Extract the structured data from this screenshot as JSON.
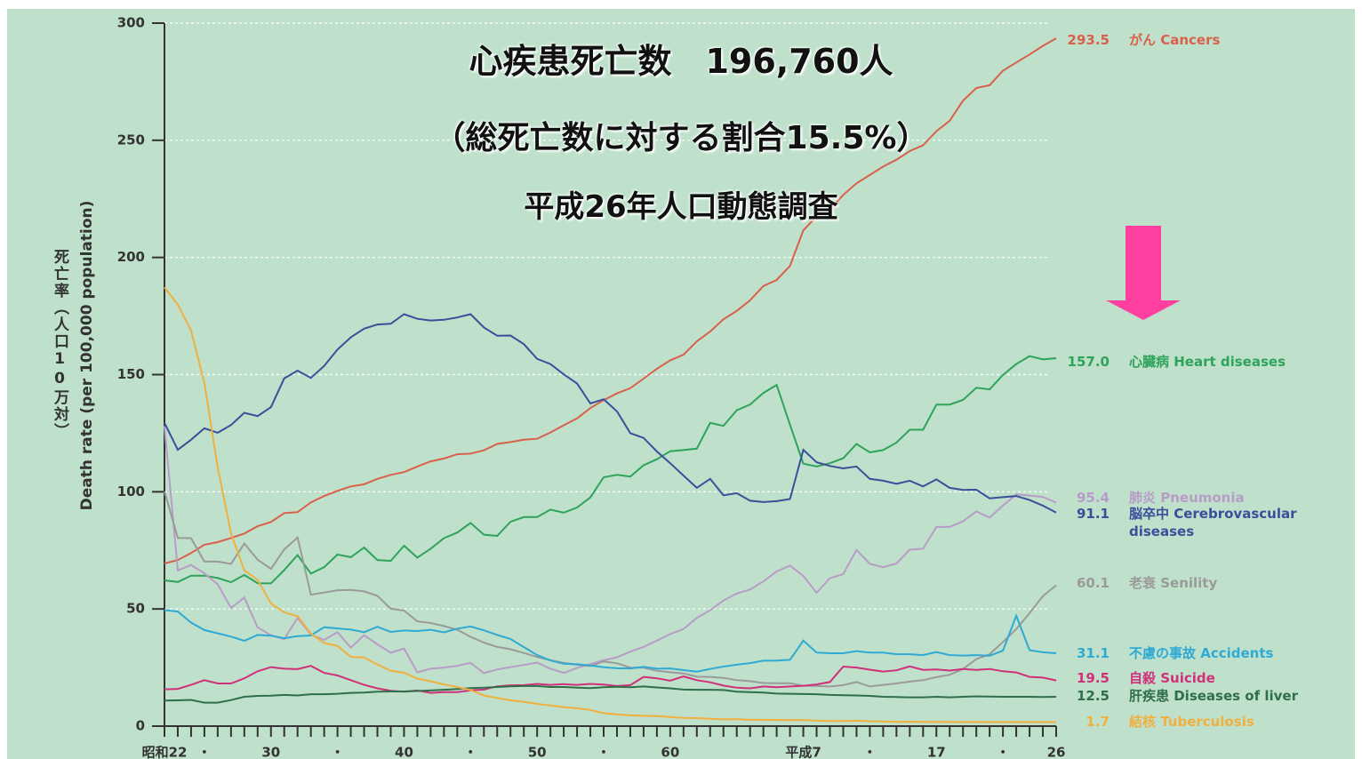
{
  "chart_data": {
    "type": "line",
    "title": "心疾患死亡数　196,760人",
    "subtitle": "（総死亡数に対する割合15.5%）",
    "source": "平成26年人口動態調査",
    "ylabel": "死亡率（人口10万対）",
    "ylabel_en": "Death rate (per 100,000 population)",
    "categories": [
      "昭和22",
      null,
      null,
      "・",
      null,
      null,
      null,
      null,
      "30",
      null,
      null,
      null,
      null,
      "・",
      null,
      null,
      null,
      null,
      "40",
      null,
      null,
      null,
      null,
      "・",
      null,
      null,
      null,
      null,
      "50",
      null,
      null,
      null,
      null,
      "・",
      null,
      null,
      null,
      null,
      "60",
      null,
      null,
      null,
      null,
      null,
      null,
      null,
      null,
      null,
      "平成7",
      null,
      null,
      null,
      null,
      "・",
      null,
      null,
      null,
      null,
      "17",
      null,
      null,
      null,
      null,
      "・",
      null,
      null,
      null,
      "26"
    ],
    "ylim": [
      0,
      300
    ],
    "yticks": [
      0,
      50,
      100,
      150,
      200,
      250,
      300
    ],
    "grid": true,
    "series": [
      {
        "name": "がん Cancers",
        "color": "#d9604a",
        "values": [
          69.4,
          70.9,
          73.9,
          77.4,
          78.5,
          80.3,
          82.2,
          85.3,
          87.1,
          90.9,
          91.3,
          95.5,
          98.2,
          100.4,
          102.3,
          103.2,
          105.5,
          107.2,
          108.4,
          110.8,
          113.0,
          114.2,
          116.0,
          116.3,
          117.7,
          120.4,
          121.2,
          122.2,
          122.6,
          125.3,
          128.4,
          131.3,
          135.7,
          139.1,
          142.0,
          144.2,
          148.3,
          152.5,
          156.1,
          158.5,
          164.2,
          168.4,
          173.6,
          177.2,
          181.7,
          187.8,
          190.4,
          196.4,
          211.6,
          217.5,
          220.4,
          226.7,
          231.6,
          235.2,
          238.8,
          241.7,
          245.4,
          247.9,
          253.9,
          258.3,
          266.9,
          272.3,
          273.5,
          279.7,
          283.2,
          286.6,
          290.3,
          293.5
        ]
      },
      {
        "name": "心臓病 Heart diseases",
        "color": "#2ea35a",
        "values": [
          62.2,
          61.5,
          64.2,
          64.2,
          63.2,
          61.4,
          64.5,
          61.0,
          60.9,
          66.6,
          73.0,
          65.1,
          67.8,
          73.2,
          72.1,
          76.2,
          70.9,
          70.5,
          77.0,
          71.9,
          75.7,
          80.2,
          82.6,
          86.7,
          81.7,
          81.2,
          87.2,
          89.2,
          89.2,
          92.4,
          91.1,
          93.3,
          97.6,
          106.2,
          107.2,
          106.5,
          111.3,
          113.9,
          117.3,
          117.8,
          118.4,
          129.4,
          128.1,
          134.8,
          137.2,
          142.2,
          145.6,
          128.6,
          112.0,
          110.8,
          112.2,
          114.3,
          120.4,
          116.8,
          117.8,
          121.0,
          126.5,
          126.5,
          137.2,
          137.2,
          139.2,
          144.4,
          143.7,
          149.8,
          154.5,
          157.9,
          156.5,
          157.0
        ],
        "value_labels": [
          null,
          null,
          null,
          null,
          null,
          null,
          null,
          null,
          null,
          null,
          null,
          null,
          null,
          null,
          null,
          null,
          null,
          null,
          null,
          null,
          null,
          null,
          null,
          null,
          null,
          null,
          null,
          null,
          null,
          null,
          null,
          null,
          null,
          null,
          null,
          null,
          null,
          null,
          null,
          null,
          null,
          null,
          null,
          null,
          null,
          null,
          null,
          null,
          null,
          null,
          null,
          null,
          null,
          null,
          null,
          null,
          null,
          null,
          null,
          null,
          null,
          null,
          null,
          null,
          null,
          null,
          null,
          "157.0"
        ]
      },
      {
        "name": "肺炎 Pneumonia",
        "color": "#b89cc8",
        "values": [
          128.0,
          66.4,
          68.8,
          65.2,
          60.5,
          50.4,
          54.9,
          42.1,
          38.8,
          37.1,
          46.2,
          39.0,
          36.8,
          40.1,
          33.5,
          38.8,
          34.9,
          31.3,
          33.1,
          22.9,
          24.5,
          25.0,
          25.7,
          27.0,
          22.6,
          24.2,
          25.2,
          26.1,
          27.1,
          24.5,
          22.7,
          24.8,
          26.5,
          28.1,
          29.4,
          31.8,
          33.8,
          36.5,
          39.3,
          41.4,
          46.2,
          49.4,
          53.6,
          56.6,
          58.3,
          61.8,
          66.0,
          68.5,
          64.1,
          56.9,
          63.1,
          64.9,
          75.2,
          69.2,
          67.8,
          69.4,
          75.3,
          75.7,
          85.0,
          85.0,
          87.4,
          91.6,
          89.0,
          94.1,
          98.9,
          98.4,
          97.8,
          95.4
        ]
      },
      {
        "name": "脳卒中 Cerebrovascular diseases",
        "color": "#3a4f9a",
        "values": [
          129.4,
          117.9,
          122.2,
          127.1,
          125.2,
          128.5,
          133.7,
          132.3,
          136.1,
          148.4,
          151.7,
          148.6,
          153.7,
          160.7,
          165.9,
          169.6,
          171.4,
          171.7,
          175.8,
          173.8,
          173.1,
          173.4,
          174.4,
          175.8,
          170.1,
          166.6,
          166.7,
          163.0,
          156.7,
          154.5,
          150.1,
          146.2,
          137.7,
          139.5,
          134.3,
          125.0,
          123.0,
          117.2,
          112.2,
          106.9,
          101.7,
          105.5,
          98.5,
          99.4,
          96.2,
          95.6,
          96.0,
          96.9,
          117.9,
          112.6,
          111.0,
          110.0,
          110.8,
          105.5,
          104.7,
          103.4,
          104.7,
          102.3,
          105.3,
          101.7,
          100.8,
          100.9,
          97.2,
          97.7,
          98.2,
          96.5,
          94.1,
          91.1
        ]
      },
      {
        "name": "老衰 Senility",
        "color": "#9a9a9a",
        "values": [
          100.2,
          80.3,
          80.2,
          70.2,
          70.2,
          69.2,
          77.9,
          71.0,
          67.1,
          75.4,
          80.5,
          56.1,
          57.0,
          58.0,
          58.1,
          57.5,
          55.6,
          50.1,
          49.3,
          44.7,
          44.0,
          42.7,
          41.1,
          38.1,
          35.6,
          33.8,
          32.8,
          31.2,
          29.5,
          28.1,
          27.0,
          26.2,
          25.6,
          27.6,
          26.8,
          25.0,
          24.9,
          23.6,
          23.0,
          22.5,
          21.1,
          21.0,
          20.6,
          19.6,
          19.2,
          18.4,
          18.3,
          18.3,
          17.2,
          17.1,
          16.9,
          17.5,
          18.8,
          16.9,
          17.6,
          18.2,
          19.0,
          19.6,
          20.9,
          21.9,
          24.4,
          28.6,
          30.7,
          35.9,
          41.4,
          48.2,
          55.5,
          60.1
        ]
      },
      {
        "name": "不慮の事故 Accidents",
        "color": "#2eaad4",
        "values": [
          49.5,
          48.9,
          44.2,
          41.0,
          39.6,
          38.2,
          36.4,
          38.9,
          38.6,
          37.5,
          38.4,
          38.7,
          42.2,
          41.7,
          41.2,
          40.1,
          42.4,
          40.2,
          40.8,
          40.6,
          41.1,
          40.0,
          41.6,
          42.5,
          40.9,
          38.9,
          37.2,
          33.7,
          30.3,
          28.0,
          26.6,
          26.4,
          25.9,
          25.1,
          24.7,
          24.6,
          25.3,
          24.5,
          24.6,
          23.9,
          23.2,
          24.4,
          25.4,
          26.2,
          26.9,
          27.9,
          28.0,
          28.3,
          36.5,
          31.4,
          31.1,
          31.1,
          32.0,
          31.4,
          31.4,
          30.7,
          30.7,
          30.3,
          31.6,
          30.3,
          30.1,
          30.3,
          30.0,
          32.2,
          47.1,
          32.4,
          31.5,
          31.1
        ]
      },
      {
        "name": "自殺 Suicide",
        "color": "#d0307a",
        "values": [
          15.7,
          15.9,
          17.6,
          19.6,
          18.2,
          18.2,
          20.4,
          23.4,
          25.2,
          24.5,
          24.3,
          25.7,
          22.7,
          21.6,
          19.6,
          17.6,
          16.1,
          15.1,
          14.7,
          15.2,
          14.2,
          14.5,
          14.5,
          15.3,
          15.6,
          17.0,
          17.4,
          17.5,
          18.0,
          17.6,
          17.9,
          17.6,
          18.0,
          17.7,
          17.1,
          17.5,
          21.0,
          20.4,
          19.4,
          21.2,
          19.6,
          18.7,
          17.3,
          16.4,
          16.1,
          16.9,
          16.6,
          16.9,
          17.2,
          17.8,
          18.8,
          25.4,
          25.0,
          24.1,
          23.3,
          23.8,
          25.5,
          24.0,
          24.2,
          23.7,
          24.4,
          24.0,
          24.4,
          23.4,
          22.9,
          21.0,
          20.7,
          19.5
        ]
      },
      {
        "name": "肝疾患 Diseases of liver",
        "color": "#2f6f4a",
        "values": [
          10.9,
          11.0,
          11.2,
          10.0,
          10.0,
          11.1,
          12.5,
          12.9,
          13.0,
          13.3,
          13.1,
          13.6,
          13.6,
          13.8,
          14.2,
          14.3,
          14.7,
          14.8,
          14.8,
          15.0,
          15.2,
          15.5,
          15.8,
          16.2,
          16.4,
          16.7,
          17.0,
          17.1,
          17.1,
          16.7,
          16.7,
          16.4,
          16.2,
          16.6,
          16.8,
          16.6,
          16.9,
          16.5,
          16.1,
          15.6,
          15.5,
          15.5,
          15.4,
          14.7,
          14.5,
          14.3,
          13.9,
          13.8,
          13.7,
          13.6,
          13.3,
          13.2,
          13.1,
          12.9,
          12.5,
          12.4,
          12.3,
          12.3,
          12.5,
          12.3,
          12.5,
          12.7,
          12.6,
          12.5,
          12.5,
          12.5,
          12.4,
          12.5
        ]
      },
      {
        "name": "結核 Tuberculosis",
        "color": "#f0b040",
        "values": [
          187.2,
          179.9,
          168.8,
          146.4,
          110.3,
          82.2,
          66.5,
          62.4,
          52.3,
          48.6,
          46.9,
          39.5,
          35.5,
          34.2,
          29.6,
          29.3,
          26.3,
          23.6,
          22.8,
          20.3,
          19.1,
          17.8,
          16.7,
          15.4,
          13.1,
          12.0,
          11.0,
          10.4,
          9.5,
          8.8,
          8.1,
          7.6,
          6.9,
          5.5,
          5.0,
          4.6,
          4.4,
          4.3,
          3.9,
          3.5,
          3.4,
          3.1,
          2.9,
          3.0,
          2.7,
          2.7,
          2.6,
          2.6,
          2.6,
          2.3,
          2.2,
          2.2,
          2.3,
          2.1,
          2.0,
          1.8,
          1.9,
          1.8,
          1.8,
          1.8,
          1.7,
          1.8,
          1.7,
          1.7,
          1.7,
          1.7,
          1.7,
          1.7
        ]
      }
    ]
  }
}
